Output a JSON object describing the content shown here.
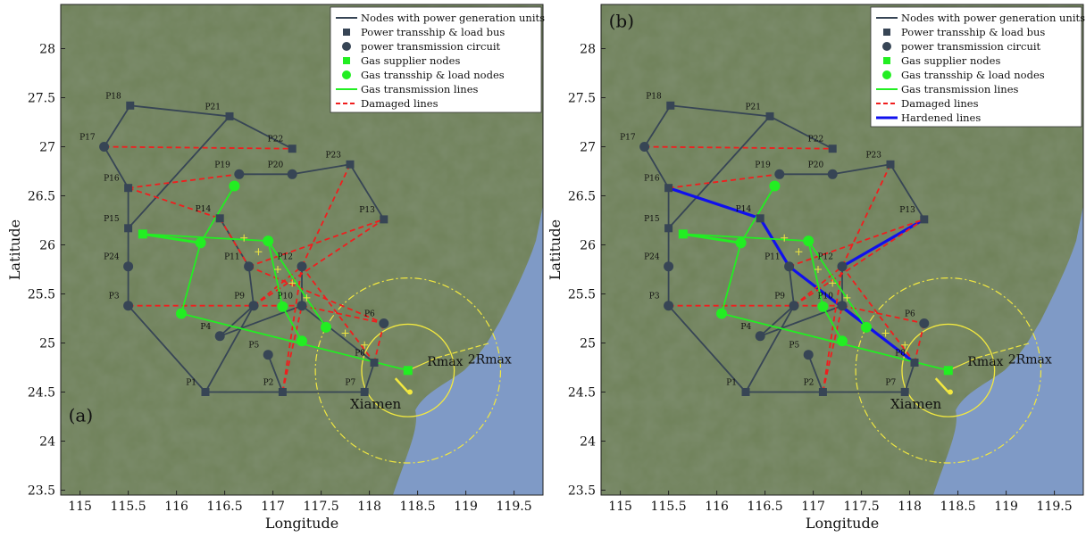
{
  "chart_data": {
    "type": "scatter",
    "xlabel": "Longitude",
    "ylabel": "Latitude",
    "xlim": [
      114.8,
      119.8
    ],
    "ylim": [
      23.45,
      28.45
    ],
    "xticks": [
      115,
      115.5,
      116,
      116.5,
      117,
      117.5,
      118,
      118.5,
      119,
      119.5
    ],
    "xtick_labels": [
      "115",
      "115.5",
      "116",
      "116.5",
      "117",
      "117.5",
      "118",
      "118.5",
      "119",
      "119.5"
    ],
    "yticks": [
      23.5,
      24,
      24.5,
      25,
      25.5,
      26,
      26.5,
      27,
      27.5,
      28
    ],
    "ytick_labels": [
      "23.5",
      "24",
      "24.5",
      "25",
      "25.5",
      "26",
      "26.5",
      "27",
      "27.5",
      "28"
    ],
    "legend_position": "top-right",
    "city_label": "Xiamen",
    "radius_labels": [
      "Rmax",
      "2Rmax"
    ],
    "power_nodes": [
      {
        "id": "P1",
        "x": 116.3,
        "y": 24.5,
        "kind": "bus"
      },
      {
        "id": "P2",
        "x": 117.1,
        "y": 24.5,
        "kind": "bus"
      },
      {
        "id": "P3",
        "x": 115.5,
        "y": 25.38,
        "kind": "gen"
      },
      {
        "id": "P4",
        "x": 116.45,
        "y": 25.07,
        "kind": "gen"
      },
      {
        "id": "P5",
        "x": 116.95,
        "y": 24.88,
        "kind": "gen"
      },
      {
        "id": "P6",
        "x": 118.15,
        "y": 25.2,
        "kind": "gen"
      },
      {
        "id": "P7",
        "x": 117.95,
        "y": 24.5,
        "kind": "bus"
      },
      {
        "id": "P8",
        "x": 118.05,
        "y": 24.8,
        "kind": "bus"
      },
      {
        "id": "P9",
        "x": 116.8,
        "y": 25.38,
        "kind": "gen"
      },
      {
        "id": "P10",
        "x": 117.3,
        "y": 25.38,
        "kind": "gen"
      },
      {
        "id": "P11",
        "x": 116.75,
        "y": 25.78,
        "kind": "gen"
      },
      {
        "id": "P12",
        "x": 117.3,
        "y": 25.78,
        "kind": "gen"
      },
      {
        "id": "P13",
        "x": 118.15,
        "y": 26.26,
        "kind": "bus"
      },
      {
        "id": "P14",
        "x": 116.45,
        "y": 26.27,
        "kind": "bus"
      },
      {
        "id": "P15",
        "x": 115.5,
        "y": 26.17,
        "kind": "bus"
      },
      {
        "id": "P16",
        "x": 115.5,
        "y": 26.58,
        "kind": "bus"
      },
      {
        "id": "P17",
        "x": 115.25,
        "y": 27.0,
        "kind": "gen"
      },
      {
        "id": "P18",
        "x": 115.52,
        "y": 27.42,
        "kind": "bus"
      },
      {
        "id": "P19",
        "x": 116.65,
        "y": 26.72,
        "kind": "gen"
      },
      {
        "id": "P20",
        "x": 117.2,
        "y": 26.72,
        "kind": "gen"
      },
      {
        "id": "P21",
        "x": 116.55,
        "y": 27.31,
        "kind": "bus"
      },
      {
        "id": "P22",
        "x": 117.2,
        "y": 26.98,
        "kind": "bus"
      },
      {
        "id": "P23",
        "x": 117.8,
        "y": 26.82,
        "kind": "bus"
      },
      {
        "id": "P24",
        "x": 115.5,
        "y": 25.78,
        "kind": "gen"
      }
    ],
    "gas_nodes": [
      {
        "id": "G1",
        "x": 115.65,
        "y": 26.11,
        "kind": "supplier"
      },
      {
        "id": "G2",
        "x": 116.25,
        "y": 26.02,
        "kind": "trans"
      },
      {
        "id": "G3",
        "x": 116.95,
        "y": 26.04,
        "kind": "trans"
      },
      {
        "id": "G4",
        "x": 116.6,
        "y": 26.6,
        "kind": "trans"
      },
      {
        "id": "G5",
        "x": 116.05,
        "y": 25.3,
        "kind": "trans"
      },
      {
        "id": "G6",
        "x": 117.1,
        "y": 25.37,
        "kind": "trans"
      },
      {
        "id": "G7",
        "x": 117.3,
        "y": 25.02,
        "kind": "trans"
      },
      {
        "id": "G8",
        "x": 117.55,
        "y": 25.16,
        "kind": "trans"
      },
      {
        "id": "G9",
        "x": 118.4,
        "y": 24.72,
        "kind": "supplier"
      }
    ],
    "power_lines": [
      [
        "P1",
        "P2"
      ],
      [
        "P1",
        "P3"
      ],
      [
        "P1",
        "P9"
      ],
      [
        "P2",
        "P5"
      ],
      [
        "P2",
        "P7"
      ],
      [
        "P3",
        "P24"
      ],
      [
        "P24",
        "P15"
      ],
      [
        "P15",
        "P16"
      ],
      [
        "P16",
        "P17"
      ],
      [
        "P17",
        "P18"
      ],
      [
        "P18",
        "P21"
      ],
      [
        "P21",
        "P22"
      ],
      [
        "P21",
        "P15"
      ],
      [
        "P19",
        "P20"
      ],
      [
        "P20",
        "P23"
      ],
      [
        "P23",
        "P13"
      ],
      [
        "P4",
        "P9"
      ],
      [
        "P4",
        "P10"
      ],
      [
        "P9",
        "P11"
      ],
      [
        "P11",
        "P14"
      ],
      [
        "P10",
        "P12"
      ],
      [
        "P10",
        "P8"
      ],
      [
        "P7",
        "P8"
      ]
    ],
    "gas_lines": [
      [
        "G1",
        "G2"
      ],
      [
        "G1",
        "G3"
      ],
      [
        "G2",
        "G4"
      ],
      [
        "G2",
        "G5"
      ],
      [
        "G3",
        "G6"
      ],
      [
        "G3",
        "G8"
      ],
      [
        "G5",
        "G9"
      ],
      [
        "G6",
        "G7"
      ]
    ],
    "panels": [
      {
        "label": "(a)",
        "legend": [
          {
            "key": "gen",
            "text": "Nodes with power generation units"
          },
          {
            "key": "bus",
            "text": "Power transship & load bus"
          },
          {
            "key": "circ",
            "text": "power transmission circuit"
          },
          {
            "key": "gsup",
            "text": "Gas supplier nodes"
          },
          {
            "key": "gtrans",
            "text": "Gas transship & load nodes"
          },
          {
            "key": "gline",
            "text": "Gas transmission lines"
          },
          {
            "key": "dmg",
            "text": "Damaged lines"
          }
        ],
        "damaged_lines": [
          [
            "P17",
            "P22"
          ],
          [
            "P16",
            "P19"
          ],
          [
            "P16",
            "P14"
          ],
          [
            "P14",
            "P11"
          ],
          [
            "P3",
            "P10"
          ],
          [
            "P23",
            "P12"
          ],
          [
            "P11",
            "P13"
          ],
          [
            "P11",
            "P6"
          ],
          [
            "P9",
            "P12"
          ],
          [
            "P9",
            "P13"
          ],
          [
            "P10",
            "P6"
          ],
          [
            "P12",
            "P8"
          ],
          [
            "P2",
            "P10"
          ],
          [
            "P2",
            "P12"
          ],
          [
            "P6",
            "P8"
          ]
        ],
        "hardened_lines": []
      },
      {
        "label": "(b)",
        "legend": [
          {
            "key": "gen",
            "text": "Nodes with power generation units"
          },
          {
            "key": "bus",
            "text": "Power transship & load bus"
          },
          {
            "key": "circ",
            "text": "power transmission circuit"
          },
          {
            "key": "gsup",
            "text": "Gas supplier nodes"
          },
          {
            "key": "gtrans",
            "text": "Gas transship & load nodes"
          },
          {
            "key": "gline",
            "text": "Gas transmission lines"
          },
          {
            "key": "dmg",
            "text": "Damaged lines"
          },
          {
            "key": "hard",
            "text": "Hardened lines"
          }
        ],
        "damaged_lines": [
          [
            "P17",
            "P22"
          ],
          [
            "P16",
            "P19"
          ],
          [
            "P3",
            "P10"
          ],
          [
            "P23",
            "P12"
          ],
          [
            "P11",
            "P13"
          ],
          [
            "P9",
            "P12"
          ],
          [
            "P9",
            "P13"
          ],
          [
            "P10",
            "P6"
          ],
          [
            "P12",
            "P8"
          ],
          [
            "P2",
            "P10"
          ],
          [
            "P2",
            "P12"
          ],
          [
            "P6",
            "P8"
          ]
        ],
        "hardened_lines": [
          [
            "P16",
            "P14"
          ],
          [
            "P14",
            "P11"
          ],
          [
            "P11",
            "P8"
          ],
          [
            "P12",
            "P13"
          ]
        ]
      }
    ],
    "colors": {
      "power": "#374555",
      "gas": "#22ee22",
      "damaged": "#f01e1e",
      "hardened": "#1010ee",
      "typhoon": "#f2e840",
      "land": "#6f8159",
      "sea": "#7f9ac6"
    }
  }
}
